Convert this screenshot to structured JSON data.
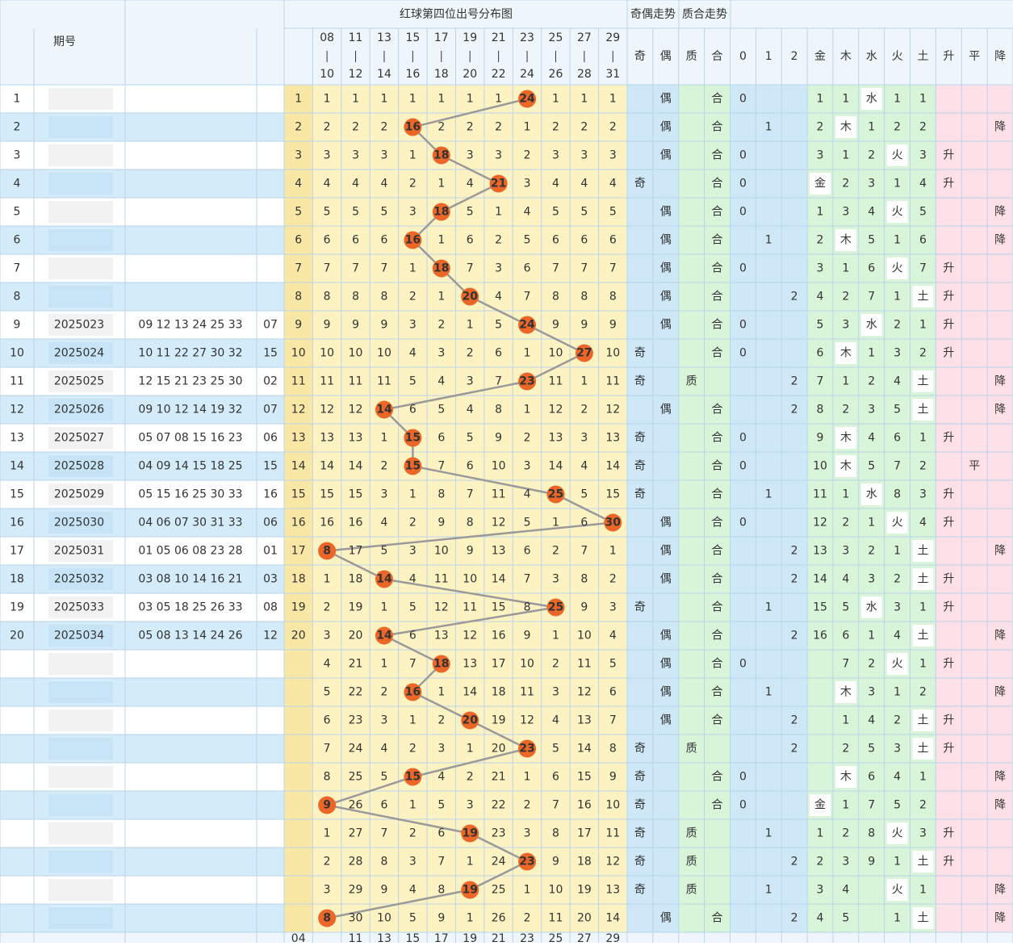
{
  "header": {
    "title": "红球第四位出号分布图",
    "parity_title": "奇偶走势",
    "pc_title": "质合走势",
    "issue_label": "期号",
    "columns": [
      "奇",
      "偶",
      "质",
      "合",
      "0",
      "1",
      "2",
      "金",
      "木",
      "水",
      "火",
      "土",
      "升",
      "平",
      "降"
    ],
    "pos_heads": [
      [
        null,
        null
      ],
      [
        "08",
        "10"
      ],
      [
        "11",
        "12"
      ],
      [
        "13",
        "14"
      ],
      [
        "15",
        "16"
      ],
      [
        "17",
        "18"
      ],
      [
        "19",
        "20"
      ],
      [
        "21",
        "22"
      ],
      [
        "23",
        "24"
      ],
      [
        "25",
        "26"
      ],
      [
        "27",
        "28"
      ],
      [
        "29",
        "31"
      ]
    ],
    "pos_foot": [
      "04",
      null,
      "11",
      "13",
      "15",
      "17",
      "19",
      "21",
      "23",
      "25",
      "27",
      "29"
    ]
  },
  "rows": [
    {
      "no": 1,
      "issue": null,
      "red": null,
      "blue": null,
      "pos": [
        1,
        1,
        1,
        1,
        1,
        1,
        1,
        1,
        {
          "ball": 24
        },
        1,
        1,
        1
      ],
      "parity": "偶",
      "pc": "合",
      "rem": 0,
      "wx": [
        1,
        1,
        "水",
        1,
        1
      ],
      "trend": null
    },
    {
      "no": 2,
      "issue": null,
      "red": null,
      "blue": null,
      "pos": [
        2,
        2,
        2,
        2,
        {
          "ball": 16
        },
        2,
        2,
        2,
        1,
        2,
        2,
        2
      ],
      "parity": "偶",
      "pc": "合",
      "rem": 1,
      "wx": [
        2,
        "木",
        1,
        2,
        2
      ],
      "trend": "降"
    },
    {
      "no": 3,
      "issue": null,
      "red": null,
      "blue": null,
      "pos": [
        3,
        3,
        3,
        3,
        1,
        {
          "ball": 18
        },
        3,
        3,
        2,
        3,
        3,
        3
      ],
      "parity": "偶",
      "pc": "合",
      "rem": 0,
      "wx": [
        3,
        1,
        2,
        "火",
        3
      ],
      "trend": "升"
    },
    {
      "no": 4,
      "issue": null,
      "red": null,
      "blue": null,
      "pos": [
        4,
        4,
        4,
        4,
        2,
        1,
        4,
        {
          "ball": 21
        },
        3,
        4,
        4,
        4
      ],
      "parity": "奇",
      "pc": "合",
      "rem": 0,
      "wx": [
        "金",
        2,
        3,
        1,
        4
      ],
      "trend": "升"
    },
    {
      "no": 5,
      "issue": null,
      "red": null,
      "blue": null,
      "pos": [
        5,
        5,
        5,
        5,
        3,
        {
          "ball": 18
        },
        5,
        1,
        4,
        5,
        5,
        5
      ],
      "parity": "偶",
      "pc": "合",
      "rem": 0,
      "wx": [
        1,
        3,
        4,
        "火",
        5
      ],
      "trend": "降"
    },
    {
      "no": 6,
      "issue": null,
      "red": null,
      "blue": null,
      "pos": [
        6,
        6,
        6,
        6,
        {
          "ball": 16
        },
        1,
        6,
        2,
        5,
        6,
        6,
        6
      ],
      "parity": "偶",
      "pc": "合",
      "rem": 1,
      "wx": [
        2,
        "木",
        5,
        1,
        6
      ],
      "trend": "降"
    },
    {
      "no": 7,
      "issue": null,
      "red": null,
      "blue": null,
      "pos": [
        7,
        7,
        7,
        7,
        1,
        {
          "ball": 18
        },
        7,
        3,
        6,
        7,
        7,
        7
      ],
      "parity": "偶",
      "pc": "合",
      "rem": 0,
      "wx": [
        3,
        1,
        6,
        "火",
        7
      ],
      "trend": "升"
    },
    {
      "no": 8,
      "issue": null,
      "red": null,
      "blue": null,
      "pos": [
        8,
        8,
        8,
        8,
        2,
        1,
        {
          "ball": 20
        },
        4,
        7,
        8,
        8,
        8
      ],
      "parity": "偶",
      "pc": "合",
      "rem": 2,
      "wx": [
        4,
        2,
        7,
        1,
        "土"
      ],
      "trend": "升"
    },
    {
      "no": 9,
      "issue": "2025023",
      "red": "09 12 13 24 25 33",
      "blue": "07",
      "pos": [
        9,
        9,
        9,
        9,
        3,
        2,
        1,
        5,
        {
          "ball": 24
        },
        9,
        9,
        9
      ],
      "parity": "偶",
      "pc": "合",
      "rem": 0,
      "wx": [
        5,
        3,
        "水",
        2,
        1
      ],
      "trend": "升"
    },
    {
      "no": 10,
      "issue": "2025024",
      "red": "10 11 22 27 30 32",
      "blue": "15",
      "pos": [
        10,
        10,
        10,
        10,
        4,
        3,
        2,
        6,
        1,
        10,
        {
          "ball": 27
        },
        10
      ],
      "parity": "奇",
      "pc": "合",
      "rem": 0,
      "wx": [
        6,
        "木",
        1,
        3,
        2
      ],
      "trend": "升"
    },
    {
      "no": 11,
      "issue": "2025025",
      "red": "12 15 21 23 25 30",
      "blue": "02",
      "pos": [
        11,
        11,
        11,
        11,
        5,
        4,
        3,
        7,
        {
          "ball": 23
        },
        11,
        1,
        11
      ],
      "parity": "奇",
      "pc": "质",
      "rem": 2,
      "wx": [
        7,
        1,
        2,
        4,
        "土"
      ],
      "trend": "降"
    },
    {
      "no": 12,
      "issue": "2025026",
      "red": "09 10 12 14 19 32",
      "blue": "07",
      "pos": [
        12,
        12,
        12,
        {
          "ball": 14
        },
        6,
        5,
        4,
        8,
        1,
        12,
        2,
        12
      ],
      "parity": "偶",
      "pc": "合",
      "rem": 2,
      "wx": [
        8,
        2,
        3,
        5,
        "土"
      ],
      "trend": "降"
    },
    {
      "no": 13,
      "issue": "2025027",
      "red": "05 07 08 15 16 23",
      "blue": "06",
      "pos": [
        13,
        13,
        13,
        1,
        {
          "ball": 15
        },
        6,
        5,
        9,
        2,
        13,
        3,
        13
      ],
      "parity": "奇",
      "pc": "合",
      "rem": 0,
      "wx": [
        9,
        "木",
        4,
        6,
        1
      ],
      "trend": "升"
    },
    {
      "no": 14,
      "issue": "2025028",
      "red": "04 09 14 15 18 25",
      "blue": "15",
      "pos": [
        14,
        14,
        14,
        2,
        {
          "ball": 15
        },
        7,
        6,
        10,
        3,
        14,
        4,
        14
      ],
      "parity": "奇",
      "pc": "合",
      "rem": 0,
      "wx": [
        10,
        "木",
        5,
        7,
        2
      ],
      "trend": "平"
    },
    {
      "no": 15,
      "issue": "2025029",
      "red": "05 15 16 25 30 33",
      "blue": "16",
      "pos": [
        15,
        15,
        15,
        3,
        1,
        8,
        7,
        11,
        4,
        {
          "ball": 25
        },
        5,
        15
      ],
      "parity": "奇",
      "pc": "合",
      "rem": 1,
      "wx": [
        11,
        1,
        "水",
        8,
        3
      ],
      "trend": "升"
    },
    {
      "no": 16,
      "issue": "2025030",
      "red": "04 06 07 30 31 33",
      "blue": "06",
      "pos": [
        16,
        16,
        16,
        4,
        2,
        9,
        8,
        12,
        5,
        1,
        6,
        {
          "ball": 30
        }
      ],
      "parity": "偶",
      "pc": "合",
      "rem": 0,
      "wx": [
        12,
        2,
        1,
        "火",
        4
      ],
      "trend": "升"
    },
    {
      "no": 17,
      "issue": "2025031",
      "red": "01 05 06 08 23 28",
      "blue": "01",
      "pos": [
        17,
        {
          "ball": 8
        },
        17,
        5,
        3,
        10,
        9,
        13,
        6,
        2,
        7,
        1
      ],
      "parity": "偶",
      "pc": "合",
      "rem": 2,
      "wx": [
        13,
        3,
        2,
        1,
        "土"
      ],
      "trend": "降"
    },
    {
      "no": 18,
      "issue": "2025032",
      "red": "03 08 10 14 16 21",
      "blue": "03",
      "pos": [
        18,
        1,
        18,
        {
          "ball": 14
        },
        4,
        11,
        10,
        14,
        7,
        3,
        8,
        2
      ],
      "parity": "偶",
      "pc": "合",
      "rem": 2,
      "wx": [
        14,
        4,
        3,
        2,
        "土"
      ],
      "trend": "升"
    },
    {
      "no": 19,
      "issue": "2025033",
      "red": "03 05 18 25 26 33",
      "blue": "08",
      "pos": [
        19,
        2,
        19,
        1,
        5,
        12,
        11,
        15,
        8,
        {
          "ball": 25
        },
        9,
        3
      ],
      "parity": "奇",
      "pc": "合",
      "rem": 1,
      "wx": [
        15,
        5,
        "水",
        3,
        1
      ],
      "trend": "升"
    },
    {
      "no": 20,
      "issue": "2025034",
      "red": "05 08 13 14 24 26",
      "blue": "12",
      "pos": [
        20,
        3,
        20,
        {
          "ball": 14
        },
        6,
        13,
        12,
        16,
        9,
        1,
        10,
        4
      ],
      "parity": "偶",
      "pc": "合",
      "rem": 2,
      "wx": [
        16,
        6,
        1,
        4,
        "土"
      ],
      "trend": "降"
    },
    {
      "no": null,
      "issue": null,
      "red": null,
      "blue": null,
      "pos": [
        null,
        4,
        21,
        1,
        7,
        {
          "ball": 18
        },
        13,
        17,
        10,
        2,
        11,
        5
      ],
      "parity": "偶",
      "pc": "合",
      "rem": 0,
      "wx": [
        null,
        7,
        2,
        "火",
        1
      ],
      "trend": "升"
    },
    {
      "no": null,
      "issue": null,
      "red": null,
      "blue": null,
      "pos": [
        null,
        5,
        22,
        2,
        {
          "ball": 16
        },
        1,
        14,
        18,
        11,
        3,
        12,
        6
      ],
      "parity": "偶",
      "pc": "合",
      "rem": 1,
      "wx": [
        null,
        "木",
        3,
        1,
        2
      ],
      "trend": "降"
    },
    {
      "no": null,
      "issue": null,
      "red": null,
      "blue": null,
      "pos": [
        null,
        6,
        23,
        3,
        1,
        2,
        {
          "ball": 20
        },
        19,
        12,
        4,
        13,
        7
      ],
      "parity": "偶",
      "pc": "合",
      "rem": 2,
      "wx": [
        null,
        1,
        4,
        2,
        "土"
      ],
      "trend": "升"
    },
    {
      "no": null,
      "issue": null,
      "red": null,
      "blue": null,
      "pos": [
        null,
        7,
        24,
        4,
        2,
        3,
        1,
        20,
        {
          "ball": 23
        },
        5,
        14,
        8
      ],
      "parity": "奇",
      "pc": "质",
      "rem": 2,
      "wx": [
        null,
        2,
        5,
        3,
        "土"
      ],
      "trend": "升"
    },
    {
      "no": null,
      "issue": null,
      "red": null,
      "blue": null,
      "pos": [
        null,
        8,
        25,
        5,
        {
          "ball": 15
        },
        4,
        2,
        21,
        1,
        6,
        15,
        9
      ],
      "parity": "奇",
      "pc": "合",
      "rem": 0,
      "wx": [
        null,
        "木",
        6,
        4,
        1
      ],
      "trend": "降"
    },
    {
      "no": null,
      "issue": null,
      "red": null,
      "blue": null,
      "pos": [
        null,
        {
          "ball": 9
        },
        26,
        6,
        1,
        5,
        3,
        22,
        2,
        7,
        16,
        10
      ],
      "parity": "奇",
      "pc": "合",
      "rem": 0,
      "wx": [
        "金",
        1,
        7,
        5,
        2
      ],
      "trend": "降"
    },
    {
      "no": null,
      "issue": null,
      "red": null,
      "blue": null,
      "pos": [
        null,
        1,
        27,
        7,
        2,
        6,
        {
          "ball": 19
        },
        23,
        3,
        8,
        17,
        11
      ],
      "parity": "奇",
      "pc": "质",
      "rem": 1,
      "wx": [
        1,
        2,
        8,
        "火",
        3
      ],
      "trend": "升"
    },
    {
      "no": null,
      "issue": null,
      "red": null,
      "blue": null,
      "pos": [
        null,
        2,
        28,
        8,
        3,
        7,
        1,
        24,
        {
          "ball": 23
        },
        9,
        18,
        12
      ],
      "parity": "奇",
      "pc": "质",
      "rem": 2,
      "wx": [
        2,
        3,
        9,
        1,
        "土"
      ],
      "trend": "升"
    },
    {
      "no": null,
      "issue": null,
      "red": null,
      "blue": null,
      "pos": [
        null,
        3,
        29,
        9,
        4,
        8,
        {
          "ball": 19
        },
        25,
        1,
        10,
        19,
        13
      ],
      "parity": "奇",
      "pc": "质",
      "rem": 1,
      "wx": [
        3,
        4,
        null,
        "火",
        1
      ],
      "trend": "降"
    },
    {
      "no": null,
      "issue": null,
      "red": null,
      "blue": null,
      "pos": [
        null,
        {
          "ball": 8
        },
        30,
        10,
        5,
        9,
        1,
        26,
        2,
        11,
        20,
        14
      ],
      "parity": "偶",
      "pc": "合",
      "rem": 2,
      "wx": [
        4,
        5,
        null,
        1,
        "土"
      ],
      "trend": "降"
    }
  ]
}
